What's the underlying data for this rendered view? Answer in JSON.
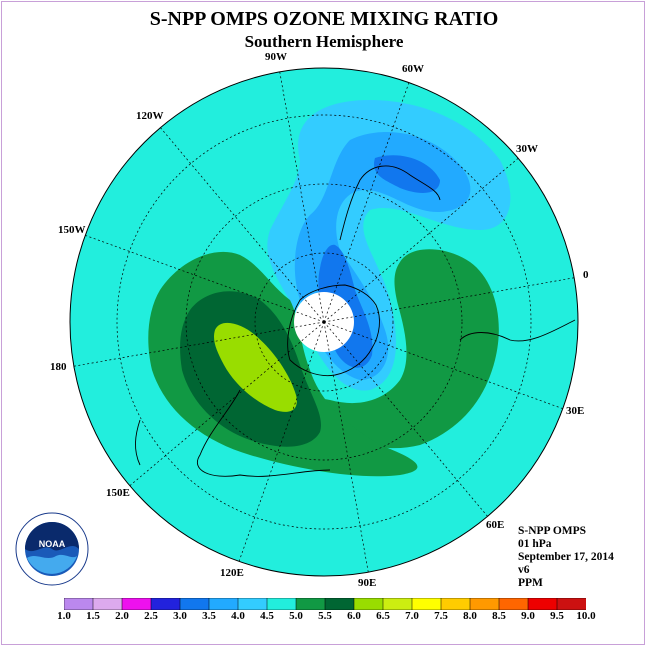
{
  "title": "S-NPP OMPS OZONE MIXING RATIO",
  "subtitle": "Southern Hemisphere",
  "info": {
    "instrument": "S-NPP OMPS",
    "level": "01 hPa",
    "date": "September 17, 2014",
    "version": "v6",
    "units": "PPM"
  },
  "longitude_labels": {
    "90W": "90W",
    "60W": "60W",
    "30W": "30W",
    "0": "0",
    "30E": "30E",
    "60E": "60E",
    "90E": "90E",
    "120E": "120E",
    "150E": "150E",
    "180": "180",
    "150W": "150W",
    "120W": "120W"
  },
  "logo_text": "NOAA",
  "colorbar": {
    "labels": [
      "1.0",
      "1.5",
      "2.0",
      "2.5",
      "3.0",
      "3.5",
      "4.0",
      "4.5",
      "5.0",
      "5.5",
      "6.0",
      "6.5",
      "7.0",
      "7.5",
      "8.0",
      "8.5",
      "9.0",
      "9.5",
      "10.0"
    ],
    "colors": [
      "#bb88ee",
      "#ddaaee",
      "#ee11ee",
      "#2222dd",
      "#1177ee",
      "#22aaff",
      "#33ccff",
      "#22eedd",
      "#119944",
      "#006633",
      "#99dd00",
      "#ccee11",
      "#ffff00",
      "#ffcc00",
      "#ff9900",
      "#ff6600",
      "#ee0000",
      "#cc1111",
      "#774422"
    ]
  },
  "region_colors": {
    "background": "#22eedd",
    "c4": "#33ccff",
    "c35": "#22aaff",
    "c3": "#1177ee",
    "c5": "#119944",
    "c55": "#006633",
    "c6": "#99dd00",
    "pole": "#ffffff"
  }
}
